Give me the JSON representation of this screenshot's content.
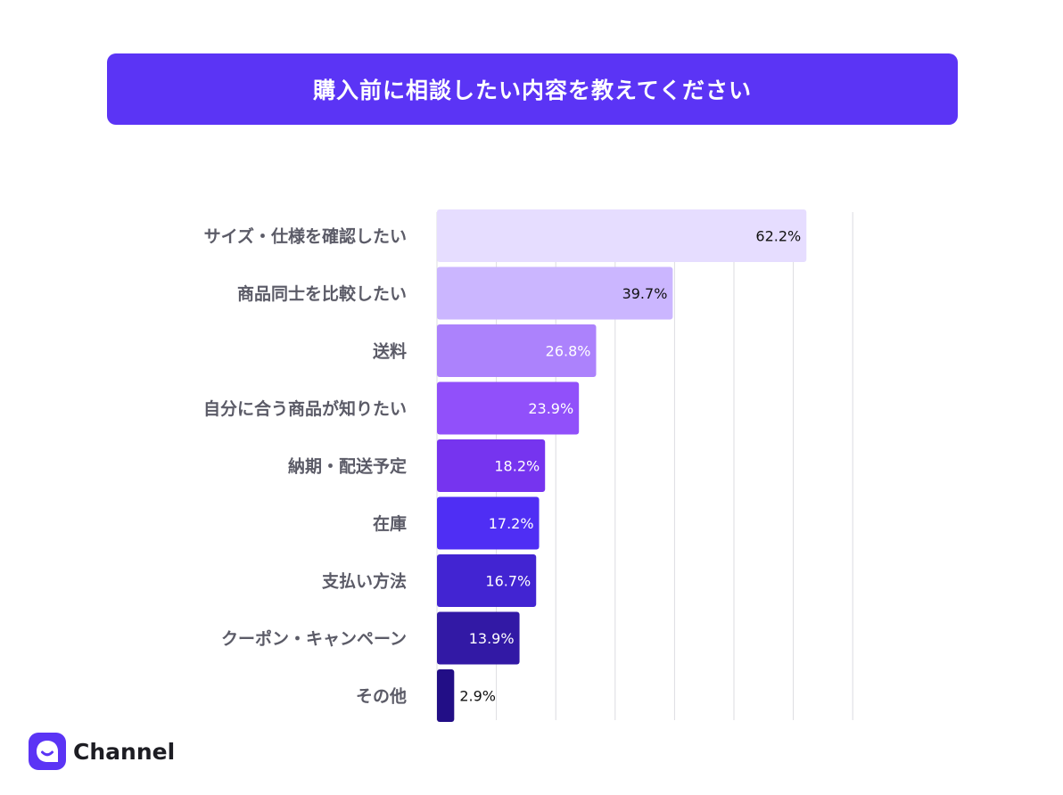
{
  "header": {
    "title": "購入前に相談したい内容を教えてください"
  },
  "brand": {
    "name": "Channel",
    "icon": "channel-chat-bubble-icon",
    "color": "#5b34f5"
  },
  "chart_data": {
    "type": "bar",
    "orientation": "horizontal",
    "title": "購入前に相談したい内容を教えてください",
    "xlabel": "",
    "ylabel": "",
    "xlim": [
      0,
      70
    ],
    "grid": true,
    "categories": [
      "サイズ・仕様を確認したい",
      "商品同士を比較したい",
      "送料",
      "自分に合う商品が知りたい",
      "納期・配送予定",
      "在庫",
      "支払い方法",
      "クーポン・キャンペーン",
      "その他"
    ],
    "values": [
      62.2,
      39.7,
      26.8,
      23.9,
      18.2,
      17.2,
      16.7,
      13.9,
      2.9
    ],
    "data_labels": [
      "62.2%",
      "39.7%",
      "26.8%",
      "23.9%",
      "18.2%",
      "17.2%",
      "16.7%",
      "13.9%",
      "2.9%"
    ],
    "bar_colors": [
      "#e6ddff",
      "#cbb6ff",
      "#ac82fc",
      "#9150fa",
      "#7634ef",
      "#4f2ef4",
      "#4224d2",
      "#3219a5",
      "#220e86"
    ],
    "label_colors": [
      "#111111",
      "#111111",
      "#ffffff",
      "#ffffff",
      "#ffffff",
      "#ffffff",
      "#ffffff",
      "#ffffff",
      "#111111"
    ]
  }
}
